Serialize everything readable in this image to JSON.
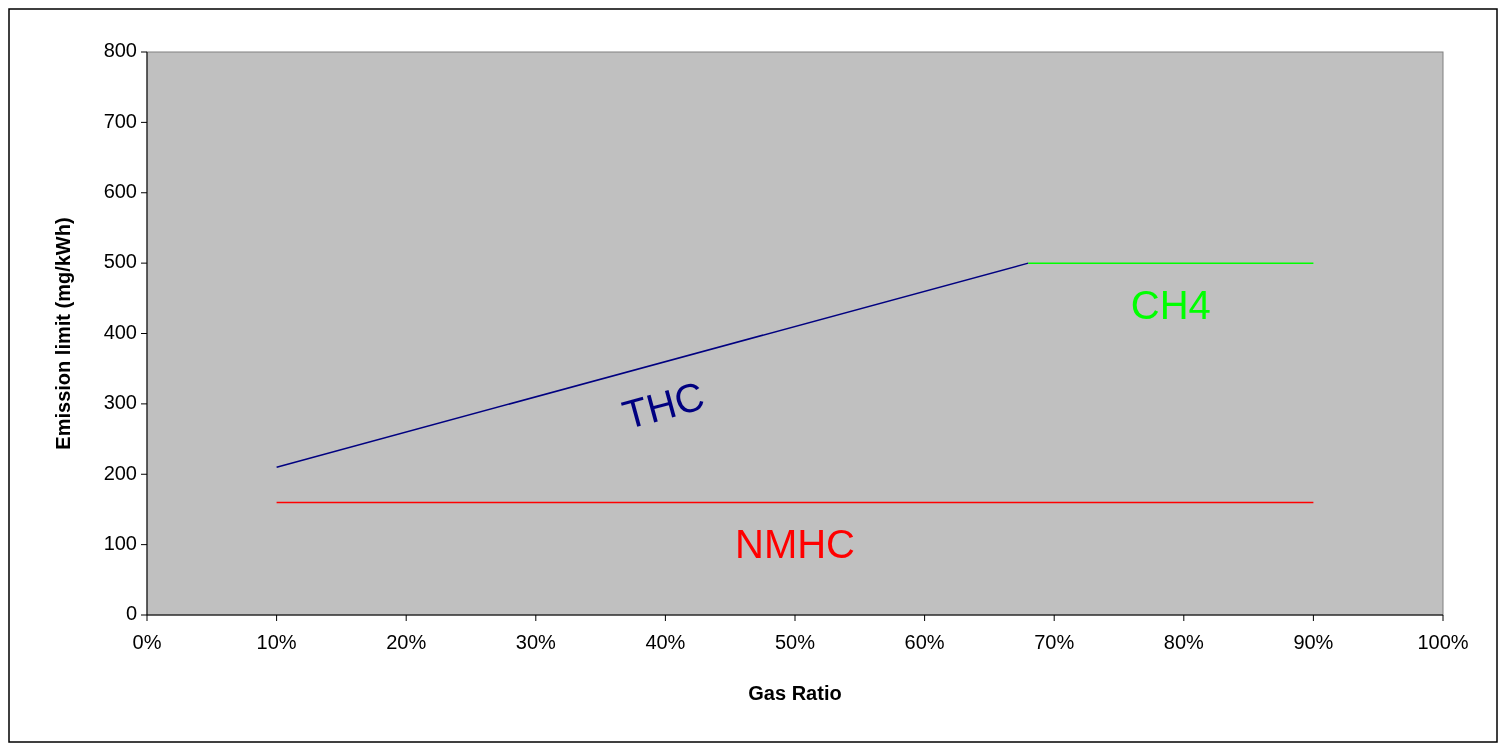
{
  "chart_data": {
    "type": "line",
    "xlabel": "Gas Ratio",
    "ylabel": "Emission limit (mg/kWh)",
    "xlim": [
      0,
      100
    ],
    "xticks": [
      {
        "value": 0,
        "label": "0%"
      },
      {
        "value": 10,
        "label": "10%"
      },
      {
        "value": 20,
        "label": "20%"
      },
      {
        "value": 30,
        "label": "30%"
      },
      {
        "value": 40,
        "label": "40%"
      },
      {
        "value": 50,
        "label": "50%"
      },
      {
        "value": 60,
        "label": "60%"
      },
      {
        "value": 70,
        "label": "70%"
      },
      {
        "value": 80,
        "label": "80%"
      },
      {
        "value": 90,
        "label": "90%"
      },
      {
        "value": 100,
        "label": "100%"
      }
    ],
    "ylim": [
      0,
      800
    ],
    "yticks": [
      0,
      100,
      200,
      300,
      400,
      500,
      600,
      700,
      800
    ],
    "grid": false,
    "marker": "none",
    "line_style": "solid",
    "series": [
      {
        "name": "THC",
        "color": "#000080",
        "x": [
          10,
          68
        ],
        "values": [
          210,
          500
        ]
      },
      {
        "name": "CH4",
        "color": "#00ff00",
        "x": [
          68,
          90
        ],
        "values": [
          500,
          500
        ]
      },
      {
        "name": "NMHC",
        "color": "#ff0000",
        "x": [
          10,
          90
        ],
        "values": [
          160,
          160
        ]
      }
    ]
  }
}
